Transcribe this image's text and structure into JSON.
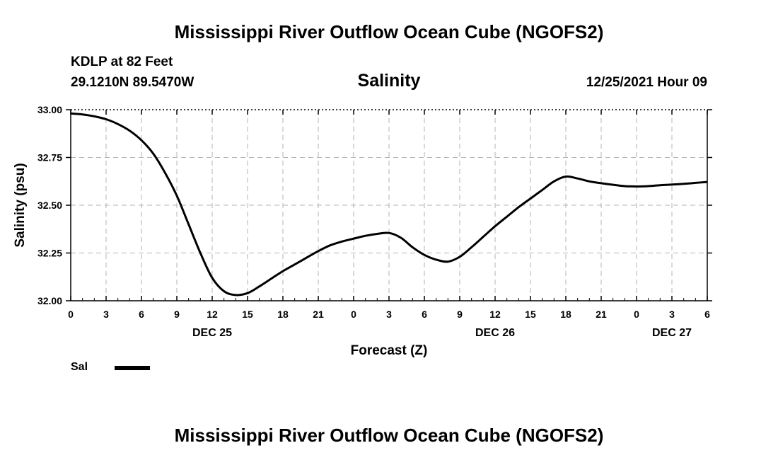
{
  "header": {
    "title": "Mississippi River Outflow Ocean Cube (NGOFS2)",
    "station": "KDLP at 82 Feet",
    "coords": "29.1210N  89.5470W",
    "run_time": "12/25/2021 Hour 09"
  },
  "footer": {
    "title": "Mississippi River Outflow Ocean Cube (NGOFS2)"
  },
  "legend": {
    "label": "Sal",
    "color": "#000000"
  },
  "chart_data": {
    "type": "line",
    "title": "Salinity",
    "xlabel": "Forecast (Z)",
    "ylabel": "Salinity (psu)",
    "xlim": [
      0,
      54
    ],
    "ylim": [
      32.0,
      33.0
    ],
    "grid": true,
    "legend_position": "bottom-left",
    "x_ticks": [
      {
        "x": 0,
        "label": "0"
      },
      {
        "x": 3,
        "label": "3"
      },
      {
        "x": 6,
        "label": "6"
      },
      {
        "x": 9,
        "label": "9"
      },
      {
        "x": 12,
        "label": "12"
      },
      {
        "x": 15,
        "label": "15"
      },
      {
        "x": 18,
        "label": "18"
      },
      {
        "x": 21,
        "label": "21"
      },
      {
        "x": 24,
        "label": "0"
      },
      {
        "x": 27,
        "label": "3"
      },
      {
        "x": 30,
        "label": "6"
      },
      {
        "x": 33,
        "label": "9"
      },
      {
        "x": 36,
        "label": "12"
      },
      {
        "x": 39,
        "label": "15"
      },
      {
        "x": 42,
        "label": "18"
      },
      {
        "x": 45,
        "label": "21"
      },
      {
        "x": 48,
        "label": "0"
      },
      {
        "x": 51,
        "label": "3"
      },
      {
        "x": 54,
        "label": "6"
      }
    ],
    "x_day_labels": [
      {
        "x": 12,
        "label": "DEC 25"
      },
      {
        "x": 36,
        "label": "DEC 26"
      },
      {
        "x": 51,
        "label": "DEC 27"
      }
    ],
    "y_ticks": [
      {
        "y": 32.0,
        "label": "32.00"
      },
      {
        "y": 32.25,
        "label": "32.25"
      },
      {
        "y": 32.5,
        "label": "32.50"
      },
      {
        "y": 32.75,
        "label": "32.75"
      },
      {
        "y": 33.0,
        "label": "33.00"
      }
    ],
    "series": [
      {
        "name": "Sal",
        "x": [
          0,
          1,
          2,
          3,
          4,
          5,
          6,
          7,
          8,
          9,
          10,
          11,
          12,
          13,
          14,
          15,
          16,
          17,
          18,
          19,
          20,
          21,
          22,
          23,
          24,
          25,
          26,
          27,
          28,
          29,
          30,
          31,
          32,
          33,
          34,
          35,
          36,
          37,
          38,
          39,
          40,
          41,
          42,
          43,
          44,
          45,
          46,
          47,
          48,
          49,
          50,
          51,
          52,
          53,
          54
        ],
        "values": [
          32.98,
          32.975,
          32.965,
          32.95,
          32.925,
          32.89,
          32.84,
          32.77,
          32.67,
          32.55,
          32.4,
          32.25,
          32.12,
          32.05,
          32.03,
          32.04,
          32.075,
          32.115,
          32.155,
          32.19,
          32.225,
          32.26,
          32.29,
          32.31,
          32.325,
          32.34,
          32.35,
          32.355,
          32.33,
          32.28,
          32.24,
          32.215,
          32.205,
          32.23,
          32.28,
          32.335,
          32.39,
          32.44,
          32.49,
          32.535,
          32.58,
          32.625,
          32.65,
          32.64,
          32.625,
          32.615,
          32.607,
          32.6,
          32.598,
          32.6,
          32.605,
          32.608,
          32.612,
          32.617,
          32.622
        ]
      }
    ]
  }
}
